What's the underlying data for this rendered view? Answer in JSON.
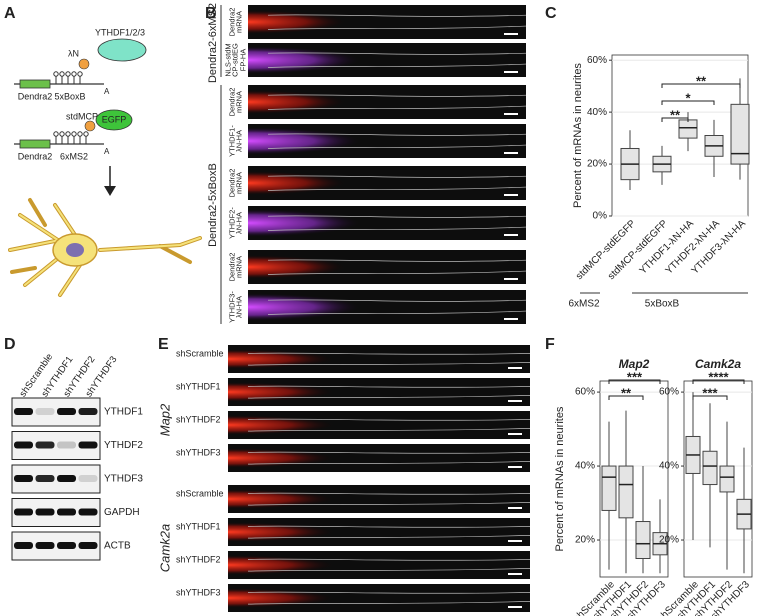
{
  "panel_letters": [
    "A",
    "B",
    "C",
    "D",
    "E",
    "F"
  ],
  "diagram": {
    "reader": "YTHDF1/2/3",
    "lambda_n": "λN",
    "boxb": "5xBoxB",
    "dendra_top": "Dendra2",
    "polya_top": "A",
    "stdmcp": "stdMCP",
    "egfp": "EGFP",
    "ms2": "6xMS2",
    "dendra_bottom": "Dendra2",
    "polya_bottom": "A"
  },
  "imaging_b": {
    "groups": [
      "Dendra2-6xMS2",
      "Dendra2-5xBoxB"
    ],
    "rows": [
      "Dendra2 mRNA",
      "NLS-stdMCP-stdEGFP-HA",
      "Dendra2 mRNA",
      "YTHDF1-λN-HA",
      "Dendra2 mRNA",
      "YTHDF2-λN-HA",
      "Dendra2 mRNA",
      "YTHDF3-λN-HA"
    ]
  },
  "blot": {
    "lanes": [
      "shScramble",
      "shYTHDF1",
      "shYTHDF2",
      "shYTHDF3"
    ],
    "proteins": [
      "YTHDF1",
      "YTHDF2",
      "YTHDF3",
      "GAPDH",
      "ACTB"
    ]
  },
  "imaging_e": {
    "genes": [
      "Map2",
      "Camk2a"
    ],
    "rows": [
      "shScramble",
      "shYTHDF1",
      "shYTHDF2",
      "shYTHDF3",
      "shScramble",
      "shYTHDF1",
      "shYTHDF2",
      "shYTHDF3"
    ]
  },
  "chart_data": [
    {
      "type": "box",
      "ylabel": "Percent of mRNAs in neurites",
      "categories": [
        "stdMCP-stdEGFP",
        "stdMCP-stdEGFP",
        "YTHDF1-λN-HA",
        "YTHDF2-λN-HA",
        "YTHDF3-λN-HA"
      ],
      "boxes": [
        {
          "min": 10,
          "q1": 14,
          "median": 20,
          "q3": 26,
          "max": 33
        },
        {
          "min": 12,
          "q1": 17,
          "median": 20,
          "q3": 23,
          "max": 27
        },
        {
          "min": 25,
          "q1": 30,
          "median": 34,
          "q3": 37,
          "max": 40
        },
        {
          "min": 15,
          "q1": 23,
          "median": 27,
          "q3": 31,
          "max": 37
        },
        {
          "min": 14,
          "q1": 20,
          "median": 24,
          "q3": 43,
          "max": 53
        }
      ],
      "groups": [
        "6xMS2",
        "5xBoxB"
      ],
      "significance": [
        "**",
        "*",
        "**"
      ],
      "ylim": [
        0,
        62
      ],
      "yticks": [
        {
          "value": 0,
          "label": "0%"
        },
        {
          "value": 20,
          "label": "20%"
        },
        {
          "value": 40,
          "label": "40%"
        },
        {
          "value": 60,
          "label": "60%"
        }
      ]
    },
    {
      "type": "box",
      "title": "Map2",
      "ylabel": "Percent of mRNAs in neurites",
      "categories": [
        "shScramble",
        "shYTHDF1",
        "shYTHDF2",
        "shYTHDF3"
      ],
      "boxes": [
        {
          "min": 12,
          "q1": 28,
          "median": 37,
          "q3": 40,
          "max": 52
        },
        {
          "min": 11,
          "q1": 26,
          "median": 35,
          "q3": 40,
          "max": 55
        },
        {
          "min": 11,
          "q1": 15,
          "median": 19,
          "q3": 25,
          "max": 40
        },
        {
          "min": 11,
          "q1": 16,
          "median": 19,
          "q3": 22,
          "max": 31
        }
      ],
      "significance": [
        "**",
        "***"
      ],
      "ylim": [
        10,
        63
      ],
      "yticks": [
        {
          "value": 20,
          "label": "20%"
        },
        {
          "value": 40,
          "label": "40%"
        },
        {
          "value": 60,
          "label": "60%"
        }
      ]
    },
    {
      "type": "box",
      "title": "Camk2a",
      "categories": [
        "shScramble",
        "shYTHDF1",
        "shYTHDF2",
        "shYTHDF3"
      ],
      "boxes": [
        {
          "min": 20,
          "q1": 38,
          "median": 43,
          "q3": 48,
          "max": 60
        },
        {
          "min": 18,
          "q1": 35,
          "median": 40,
          "q3": 44,
          "max": 57
        },
        {
          "min": 12,
          "q1": 33,
          "median": 37,
          "q3": 40,
          "max": 52
        },
        {
          "min": 11,
          "q1": 23,
          "median": 27,
          "q3": 31,
          "max": 45
        }
      ],
      "significance": [
        "***",
        "****"
      ],
      "ylim": [
        10,
        63
      ],
      "yticks": [
        {
          "value": 20,
          "label": "20%"
        },
        {
          "value": 40,
          "label": "40%"
        },
        {
          "value": 60,
          "label": "60%"
        }
      ]
    }
  ]
}
